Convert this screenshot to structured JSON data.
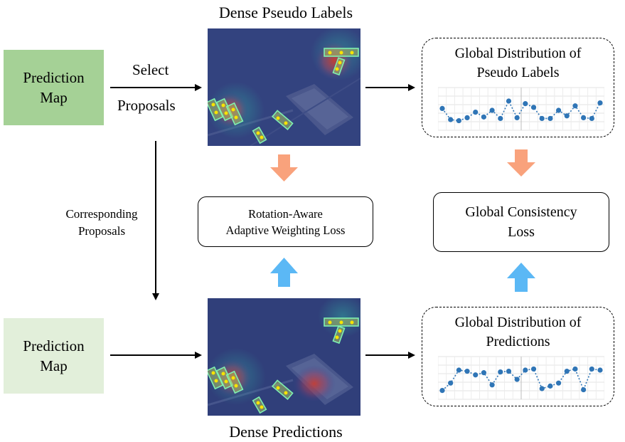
{
  "prediction_map_top": {
    "line1": "Prediction",
    "line2": "Map",
    "fill": "#a5d196"
  },
  "prediction_map_bottom": {
    "line1": "Prediction",
    "line2": "Map",
    "fill": "#e2efda"
  },
  "select_label": {
    "line1": "Select",
    "line2": "Proposals"
  },
  "corresponding_label": {
    "line1": "Corresponding",
    "line2": "Proposals"
  },
  "dense_pseudo_title": "Dense Pseudo Labels",
  "dense_pred_title": "Dense Predictions",
  "rotation_loss": {
    "line1": "Rotation-Aware",
    "line2": "Adaptive Weighting Loss"
  },
  "global_loss": {
    "line1": "Global Consistency",
    "line2": "Loss"
  },
  "dist_pseudo": {
    "line1": "Global Distribution of",
    "line2": "Pseudo Labels"
  },
  "dist_pred": {
    "line1": "Global Distribution of",
    "line2": "Predictions"
  },
  "colors": {
    "orange_arrow": "#f9a27c",
    "blue_arrow": "#5bb8f5",
    "dot": "#2f75b6"
  },
  "chart_data": [
    {
      "type": "line",
      "title": "",
      "values": [
        0.55,
        0.25,
        0.22,
        0.3,
        0.45,
        0.32,
        0.5,
        0.28,
        0.75,
        0.3,
        0.68,
        0.58,
        0.28,
        0.28,
        0.5,
        0.35,
        0.62,
        0.3,
        0.28,
        0.7
      ],
      "ylim": [
        0,
        1
      ],
      "grid": true
    },
    {
      "type": "line",
      "title": "",
      "values": [
        0.2,
        0.4,
        0.75,
        0.72,
        0.62,
        0.68,
        0.35,
        0.7,
        0.72,
        0.5,
        0.75,
        0.78,
        0.25,
        0.32,
        0.4,
        0.72,
        0.78,
        0.22,
        0.78,
        0.75
      ],
      "ylim": [
        0,
        1
      ],
      "grid": true
    }
  ]
}
